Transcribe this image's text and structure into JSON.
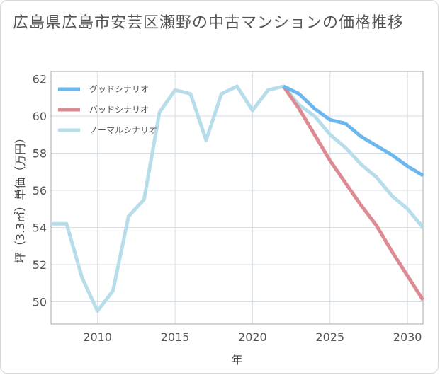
{
  "title": "広島県広島市安芸区瀬野の中古マンションの価格推移",
  "chart_data": {
    "type": "line",
    "xlabel": "年",
    "ylabel": "坪（3.3㎡）単価（万円）",
    "xlim": [
      2007,
      2031
    ],
    "ylim": [
      48.8,
      62.4
    ],
    "x_ticks": [
      2010,
      2015,
      2020,
      2025,
      2030
    ],
    "y_ticks": [
      50,
      52,
      54,
      56,
      58,
      60,
      62
    ],
    "grid": true,
    "legend_position": "top-left",
    "series": [
      {
        "name": "グッドシナリオ",
        "color": "#6cb8ee",
        "x": [
          2022,
          2023,
          2024,
          2025,
          2026,
          2027,
          2028,
          2029,
          2030,
          2031
        ],
        "values": [
          61.6,
          61.2,
          60.4,
          59.8,
          59.6,
          58.9,
          58.4,
          57.9,
          57.3,
          56.8
        ]
      },
      {
        "name": "バッドシナリオ",
        "color": "#dd8a92",
        "x": [
          2022,
          2023,
          2024,
          2025,
          2026,
          2027,
          2028,
          2029,
          2030,
          2031
        ],
        "values": [
          61.6,
          60.4,
          59.0,
          57.6,
          56.4,
          55.2,
          54.1,
          52.7,
          51.4,
          50.1
        ]
      },
      {
        "name": "ノーマルシナリオ",
        "color": "#b7dcea",
        "x": [
          2007,
          2008,
          2009,
          2010,
          2011,
          2012,
          2013,
          2014,
          2015,
          2016,
          2017,
          2018,
          2019,
          2020,
          2021,
          2022,
          2023,
          2024,
          2025,
          2026,
          2027,
          2028,
          2029,
          2030,
          2031
        ],
        "values": [
          54.2,
          54.2,
          51.3,
          49.5,
          50.6,
          54.6,
          55.5,
          60.2,
          61.4,
          61.2,
          58.7,
          61.2,
          61.6,
          60.3,
          61.4,
          61.6,
          60.6,
          60.0,
          59.0,
          58.3,
          57.4,
          56.7,
          55.7,
          55.0,
          54.0
        ]
      }
    ]
  }
}
